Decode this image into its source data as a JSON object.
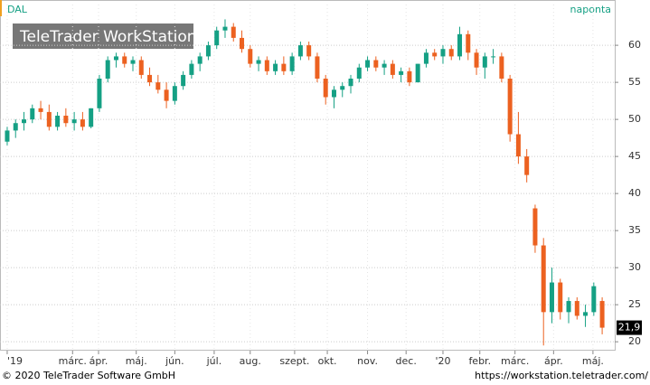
{
  "chart_data": {
    "type": "candlestick",
    "title": "DAL",
    "subtitle": "naponta",
    "watermark": "TeleTrader WorkStation",
    "x": [
      0,
      1,
      2,
      3,
      4,
      5,
      6,
      7,
      8,
      9,
      10,
      11,
      12,
      13,
      14,
      15,
      16,
      17,
      18,
      19,
      20,
      21,
      22,
      23,
      24,
      25,
      26,
      27,
      28,
      29,
      30,
      31,
      32,
      33,
      34,
      35,
      36,
      37,
      38,
      39,
      40,
      41,
      42,
      43,
      44,
      45,
      46,
      47,
      48,
      49,
      50,
      51,
      52,
      53,
      54,
      55,
      56,
      57,
      58,
      59,
      60,
      61,
      62,
      63,
      64,
      65,
      66,
      67,
      68,
      69,
      70,
      71
    ],
    "open": [
      47,
      48.5,
      49.5,
      50,
      51.5,
      51,
      49,
      50.5,
      49.5,
      50,
      49,
      51.5,
      55.5,
      58,
      58.5,
      57.5,
      58,
      56,
      55,
      54,
      52.5,
      54.5,
      56,
      57.5,
      58.5,
      60,
      62,
      62.5,
      61,
      59.5,
      57.5,
      58,
      56.5,
      57.5,
      56.5,
      58.5,
      60,
      58.5,
      55.5,
      53,
      54,
      54.5,
      55.5,
      57,
      58,
      57,
      57.5,
      56,
      56.5,
      55,
      57.5,
      59,
      58.5,
      59.5,
      58.5,
      61.5,
      59,
      57,
      58.5,
      58.5,
      55.5,
      48,
      45,
      38,
      33,
      24,
      28,
      24,
      25.5,
      23.5,
      24,
      25.5
    ],
    "high": [
      49,
      50,
      51,
      52,
      52.5,
      52,
      51,
      51.5,
      51,
      51,
      51.5,
      56,
      58.5,
      59,
      59,
      58.5,
      58.5,
      57,
      56,
      55,
      55,
      56.5,
      58,
      59,
      60.5,
      62.5,
      63.5,
      63,
      62,
      60,
      58.5,
      58.5,
      58,
      58.5,
      59,
      60.5,
      60.5,
      59,
      56,
      54.5,
      55,
      56,
      57.5,
      58.5,
      58.5,
      58,
      58,
      57,
      57,
      57.5,
      59.5,
      59.5,
      60,
      60,
      62.5,
      62,
      59.5,
      59,
      59.5,
      59,
      56,
      51,
      46,
      38.5,
      34,
      30,
      28.5,
      26,
      26,
      25,
      28,
      26
    ],
    "low": [
      46.5,
      47.5,
      48.5,
      49.5,
      50,
      48.5,
      48.5,
      49,
      48.5,
      48.5,
      48.8,
      51,
      55,
      57,
      57,
      56.5,
      55.5,
      54.5,
      53.5,
      51.5,
      52,
      54,
      55.5,
      56.5,
      58,
      59.5,
      61,
      60.5,
      59,
      57,
      56.5,
      56,
      56,
      56,
      56,
      58,
      58,
      55,
      52,
      51.5,
      53,
      53.5,
      55,
      56.5,
      56.5,
      56,
      55.5,
      55,
      54.5,
      55,
      57,
      58,
      57.5,
      58,
      58,
      58,
      56,
      55.5,
      57.5,
      55,
      47,
      44,
      41.5,
      32,
      19.5,
      22.5,
      23,
      22.5,
      23,
      22,
      23.5,
      21
    ],
    "close": [
      48.5,
      49.5,
      50,
      51.5,
      51,
      49,
      50.5,
      49.5,
      50,
      49,
      51.5,
      55.5,
      58,
      58.5,
      57.5,
      58,
      56,
      55,
      54,
      52.5,
      54.5,
      56,
      57.5,
      58.5,
      60,
      62,
      62.5,
      61,
      59.5,
      57.5,
      58,
      56.5,
      57.5,
      56.5,
      58.5,
      60,
      58.5,
      55.5,
      53,
      54,
      54.5,
      55.5,
      57,
      58,
      57,
      57.5,
      56,
      56.5,
      55,
      57.5,
      59,
      58.5,
      59.5,
      58.5,
      61.5,
      59,
      57,
      58.5,
      58.5,
      55.5,
      48,
      45,
      42.5,
      33,
      24,
      28,
      24,
      25.5,
      23.5,
      24,
      27.5,
      21.9
    ],
    "up_color": "#15a084",
    "down_color": "#ec6120",
    "last_price": {
      "value": 21.9,
      "label": "21,9"
    },
    "xlim": [
      -0.86,
      72.5
    ],
    "ylim": [
      18.8,
      65.5
    ],
    "xticks": [
      {
        "value": 0,
        "label": "'19"
      },
      {
        "value": 7.8,
        "label": "márc."
      },
      {
        "value": 10.9,
        "label": "ápr."
      },
      {
        "value": 15.4,
        "label": "máj."
      },
      {
        "value": 20,
        "label": "jún."
      },
      {
        "value": 24.7,
        "label": "júl."
      },
      {
        "value": 29,
        "label": "aug."
      },
      {
        "value": 34.3,
        "label": "szept."
      },
      {
        "value": 38.2,
        "label": "okt."
      },
      {
        "value": 43,
        "label": "nov."
      },
      {
        "value": 47.6,
        "label": "dec."
      },
      {
        "value": 52,
        "label": "'20"
      },
      {
        "value": 56.4,
        "label": "febr."
      },
      {
        "value": 60.6,
        "label": "márc."
      },
      {
        "value": 65.2,
        "label": "ápr."
      },
      {
        "value": 69.9,
        "label": "máj."
      }
    ],
    "yticks": [
      20,
      25,
      30,
      35,
      40,
      45,
      50,
      55,
      60
    ],
    "grid": true
  },
  "footer": {
    "left": "© 2020 TeleTrader Software GmbH",
    "right": "https://workstation.teletrader.com/"
  }
}
